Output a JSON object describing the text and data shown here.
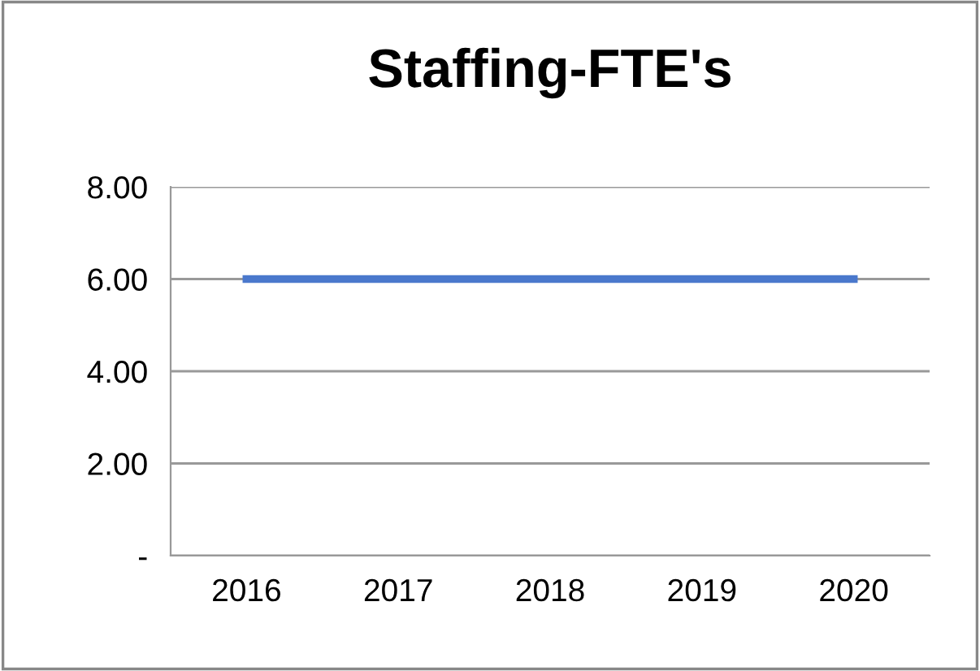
{
  "chart_data": {
    "type": "line",
    "title": "Staffing-FTE's",
    "categories": [
      "2016",
      "2017",
      "2018",
      "2019",
      "2020"
    ],
    "series": [
      {
        "color": "#4a78cc",
        "values": [
          6,
          6,
          6,
          6,
          6
        ]
      }
    ],
    "ylim": [
      0,
      8
    ],
    "yticks": [
      {
        "value": 0,
        "label": "-"
      },
      {
        "value": 2,
        "label": "2.00"
      },
      {
        "value": 4,
        "label": "4.00"
      },
      {
        "value": 6,
        "label": "6.00"
      },
      {
        "value": 8,
        "label": "8.00"
      }
    ],
    "grid": "y",
    "marker": "none",
    "line_style": "solid",
    "legend": false
  }
}
